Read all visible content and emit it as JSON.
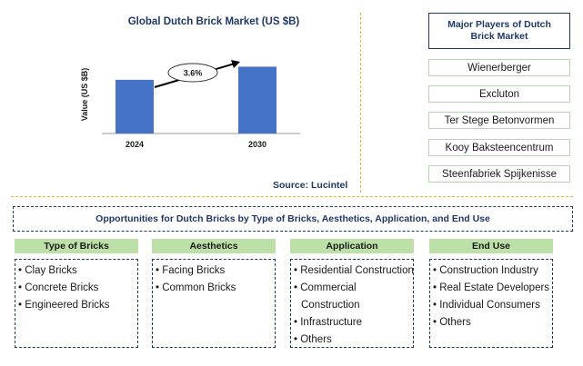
{
  "chart_data": {
    "type": "bar",
    "title": "Global Dutch Brick Market (US $B)",
    "ylabel": "Value (US $B)",
    "categories": [
      "2024",
      "2030"
    ],
    "values": [
      0.86,
      1.07
    ],
    "ylim": [
      0,
      1.6
    ],
    "cagr_label": "3.6%",
    "bar_color": "#4472c4"
  },
  "source": "Source: Lucintel",
  "players": {
    "title": "Major Players of Dutch Brick Market",
    "items": [
      "Wienerberger",
      "Excluton",
      "Ter Stege Betonvormen",
      "Kooy Baksteencentrum",
      "Steenfabriek Spijkenisse"
    ]
  },
  "opportunities": {
    "title": "Opportunities for Dutch Bricks by Type of Bricks, Aesthetics, Application, and End Use",
    "categories": [
      {
        "name": "Type of Bricks",
        "items": [
          "Clay Bricks",
          "Concrete Bricks",
          "Engineered Bricks"
        ]
      },
      {
        "name": "Aesthetics",
        "items": [
          "Facing Bricks",
          "Common Bricks"
        ]
      },
      {
        "name": "Application",
        "items": [
          "Residential Construction",
          "Commercial Construction",
          "Infrastructure",
          "Others"
        ]
      },
      {
        "name": "End Use",
        "items": [
          "Construction Industry",
          "Real Estate Developers",
          "Individual Consumers",
          "Others"
        ]
      }
    ]
  },
  "colors": {
    "accent": "#1f3864",
    "divider": "#f0b429",
    "category_header": "#bde0a8"
  }
}
